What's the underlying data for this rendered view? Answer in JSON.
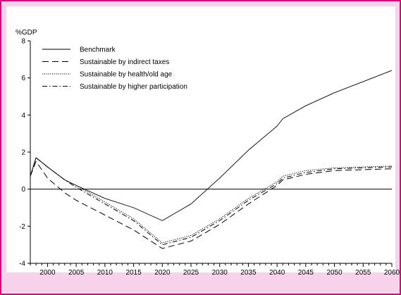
{
  "colors": {
    "frame": "#e5007d",
    "frame_fill": "#f8d2ea",
    "plot_bg": "#ffffff",
    "line": "#000000"
  },
  "chart_data": {
    "type": "line",
    "title": "",
    "ylabel": "%GDP",
    "xlabel": "",
    "xlim": [
      1997,
      2060
    ],
    "ylim": [
      -4,
      8
    ],
    "xticks": [
      2000,
      2005,
      2010,
      2015,
      2020,
      2025,
      2030,
      2035,
      2040,
      2045,
      2050,
      2055,
      2060
    ],
    "yticks": [
      -4,
      -2,
      0,
      2,
      4,
      6,
      8
    ],
    "grid": false,
    "legend_position": "top-left",
    "x": [
      1997,
      1998,
      2000,
      2003,
      2005,
      2010,
      2015,
      2020,
      2025,
      2030,
      2035,
      2040,
      2041,
      2045,
      2050,
      2055,
      2060
    ],
    "series": [
      {
        "name": "Benchmark",
        "style": "solid",
        "values": [
          0.7,
          1.7,
          1.2,
          0.5,
          0.2,
          -0.5,
          -1.0,
          -1.7,
          -0.8,
          0.6,
          2.1,
          3.4,
          3.8,
          4.5,
          5.2,
          5.8,
          6.4
        ]
      },
      {
        "name": "Sustainable by indirect taxes",
        "style": "dashed",
        "values": [
          0.7,
          1.5,
          0.6,
          -0.2,
          -0.6,
          -1.4,
          -2.2,
          -3.2,
          -2.8,
          -1.9,
          -0.8,
          0.2,
          0.5,
          0.8,
          1.0,
          1.05,
          1.1
        ]
      },
      {
        "name": "Sustainable by health/old age",
        "style": "dotted",
        "values": [
          0.7,
          1.7,
          1.2,
          0.5,
          0.2,
          -0.7,
          -1.6,
          -2.9,
          -2.5,
          -1.6,
          -0.5,
          0.4,
          0.7,
          1.0,
          1.15,
          1.2,
          1.25
        ]
      },
      {
        "name": "Sustainable by higher participation",
        "style": "dashdot",
        "values": [
          0.7,
          1.7,
          1.2,
          0.5,
          0.1,
          -0.8,
          -1.7,
          -3.0,
          -2.6,
          -1.7,
          -0.6,
          0.3,
          0.6,
          0.9,
          1.1,
          1.15,
          1.2
        ]
      }
    ]
  }
}
